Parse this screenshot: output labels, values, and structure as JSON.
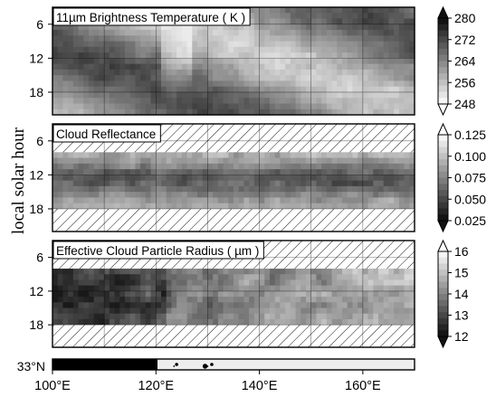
{
  "figure": {
    "ylabel": "local solar hour",
    "x_ticks": [
      {
        "value": 100,
        "label": "100°E"
      },
      {
        "value": 120,
        "label": "120°E"
      },
      {
        "value": 140,
        "label": "140°E"
      },
      {
        "value": 160,
        "label": "160°E"
      }
    ],
    "map_strip": {
      "label": "33°N",
      "land_color": "#000000",
      "sea_color": "#eeeeee",
      "coast_lon": 120.3
    }
  },
  "chart_data": [
    {
      "type": "heatmap",
      "title": "11µm Brightness Temperature ( K )",
      "y_ticks": [
        6,
        12,
        18
      ],
      "ylim": [
        3,
        22
      ],
      "xlim": [
        100,
        170
      ],
      "colorbar": {
        "ticks": [
          "280",
          "272",
          "264",
          "256",
          "248"
        ],
        "range": [
          248,
          280
        ],
        "dark_high": true
      },
      "hatched_hours": []
    },
    {
      "type": "heatmap",
      "title": "Cloud Reflectance",
      "y_ticks": [
        6,
        12,
        18
      ],
      "ylim": [
        3,
        22
      ],
      "xlim": [
        100,
        170
      ],
      "colorbar": {
        "ticks": [
          "0.125",
          "0.100",
          "0.075",
          "0.050",
          "0.025"
        ],
        "range": [
          0.025,
          0.125
        ],
        "dark_high": false
      },
      "hatched_hours": [
        [
          3,
          8
        ],
        [
          18,
          22
        ]
      ]
    },
    {
      "type": "heatmap",
      "title": "Effective Cloud Particle Radius ( µm )",
      "y_ticks": [
        6,
        12,
        18
      ],
      "ylim": [
        3,
        22
      ],
      "xlim": [
        100,
        170
      ],
      "colorbar": {
        "ticks": [
          "16",
          "15",
          "14",
          "13",
          "12"
        ],
        "range": [
          12,
          16
        ],
        "dark_high": false
      },
      "hatched_hours": [
        [
          3,
          8
        ],
        [
          18,
          22
        ]
      ]
    }
  ]
}
